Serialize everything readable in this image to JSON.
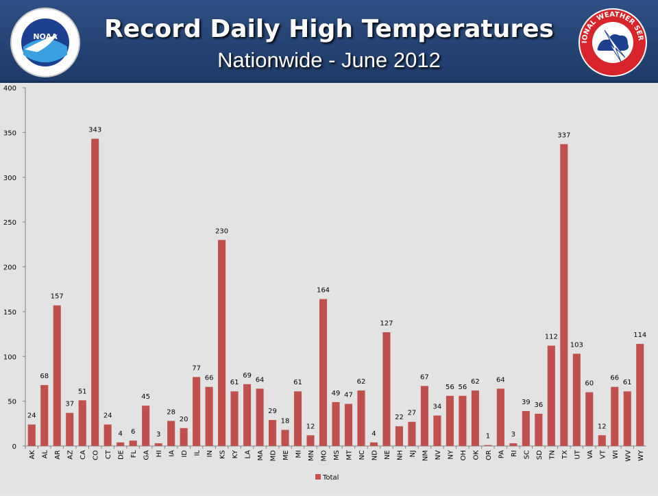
{
  "header": {
    "title": "Record Daily High Temperatures",
    "subtitle": "Nationwide - June 2012",
    "logo_left_text": "NOAA",
    "logo_right_text": "NATIONAL WEATHER SERVICE"
  },
  "colors": {
    "header_bg": "#2d4f83",
    "bar": "#c0504d",
    "chart_bg": "#e3e3e3"
  },
  "chart_data": {
    "type": "bar",
    "title": "",
    "xlabel": "",
    "ylabel": "",
    "ylim": [
      0,
      400
    ],
    "yticks": [
      0,
      50,
      100,
      150,
      200,
      250,
      300,
      350,
      400
    ],
    "grid": false,
    "legend": "bottom",
    "categories": [
      "AK",
      "AL",
      "AR",
      "AZ",
      "CA",
      "CO",
      "CT",
      "DE",
      "FL",
      "GA",
      "HI",
      "IA",
      "ID",
      "IL",
      "IN",
      "KS",
      "KY",
      "LA",
      "MA",
      "MD",
      "ME",
      "MI",
      "MN",
      "MO",
      "MS",
      "MT",
      "NC",
      "ND",
      "NE",
      "NH",
      "NJ",
      "NM",
      "NV",
      "NY",
      "OH",
      "OK",
      "OR",
      "PA",
      "RI",
      "SC",
      "SD",
      "TN",
      "TX",
      "UT",
      "VA",
      "VT",
      "WI",
      "WV",
      "WY"
    ],
    "series": [
      {
        "name": "Total",
        "color": "#c0504d",
        "values": [
          24,
          68,
          157,
          37,
          51,
          343,
          24,
          4,
          6,
          45,
          3,
          28,
          20,
          77,
          66,
          230,
          61,
          69,
          64,
          29,
          18,
          61,
          12,
          164,
          49,
          47,
          62,
          4,
          127,
          22,
          27,
          67,
          34,
          56,
          56,
          62,
          1,
          64,
          3,
          39,
          36,
          112,
          337,
          103,
          60,
          12,
          66,
          61,
          114
        ]
      }
    ]
  }
}
